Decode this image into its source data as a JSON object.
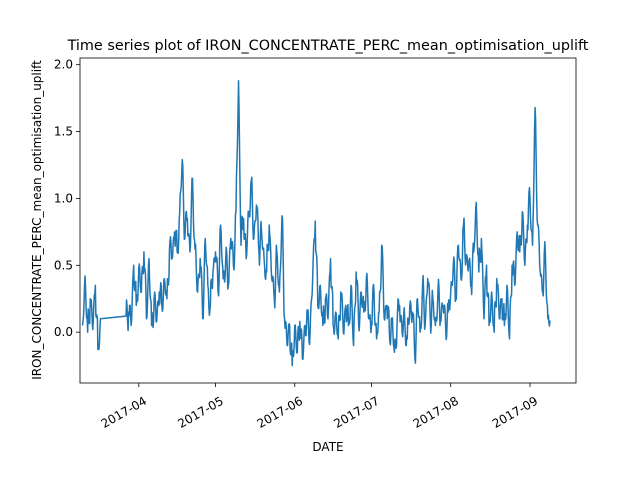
{
  "chart_data": {
    "type": "line",
    "title": "Time series plot of IRON_CONCENTRATE_PERC_mean_optimisation_uplift",
    "xlabel": "DATE",
    "ylabel": "IRON_CONCENTRATE_PERC_mean_optimisation_uplift",
    "xlim": [
      "2017-03-09",
      "2017-09-19"
    ],
    "ylim": [
      -0.38,
      2.05
    ],
    "x_ticks": [
      "2017-04",
      "2017-05",
      "2017-06",
      "2017-07",
      "2017-08",
      "2017-09"
    ],
    "y_ticks": [
      "0.0",
      "0.5",
      "1.0",
      "1.5",
      "2.0"
    ],
    "grid": false,
    "color": "#1f77b4",
    "series": [
      {
        "x": [
          "2017-03-10",
          "2017-03-11",
          "2017-03-12",
          "2017-03-13",
          "2017-03-14",
          "2017-03-15",
          "2017-03-16",
          "2017-03-17",
          "2017-03-27",
          "2017-03-28",
          "2017-03-29",
          "2017-03-30",
          "2017-03-31",
          "2017-04-01",
          "2017-04-02",
          "2017-04-03",
          "2017-04-04",
          "2017-04-05",
          "2017-04-06",
          "2017-04-07",
          "2017-04-08",
          "2017-04-09",
          "2017-04-10",
          "2017-04-11",
          "2017-04-12",
          "2017-04-13",
          "2017-04-14",
          "2017-04-15",
          "2017-04-16",
          "2017-04-17",
          "2017-04-18",
          "2017-04-19",
          "2017-04-20",
          "2017-04-21",
          "2017-04-22",
          "2017-04-23",
          "2017-04-24",
          "2017-04-25",
          "2017-04-26",
          "2017-04-27",
          "2017-04-28",
          "2017-04-29",
          "2017-04-30",
          "2017-05-01",
          "2017-05-02",
          "2017-05-03",
          "2017-05-04",
          "2017-05-05",
          "2017-05-06",
          "2017-05-07",
          "2017-05-08",
          "2017-05-09",
          "2017-05-10",
          "2017-05-11",
          "2017-05-12",
          "2017-05-13",
          "2017-05-14",
          "2017-05-15",
          "2017-05-16",
          "2017-05-17",
          "2017-05-18",
          "2017-05-19",
          "2017-05-20",
          "2017-05-21",
          "2017-05-22",
          "2017-05-23",
          "2017-05-24",
          "2017-05-25",
          "2017-05-26",
          "2017-05-27",
          "2017-05-28",
          "2017-05-29",
          "2017-05-30",
          "2017-05-31",
          "2017-06-01",
          "2017-06-02",
          "2017-06-03",
          "2017-06-04",
          "2017-06-05",
          "2017-06-06",
          "2017-06-07",
          "2017-06-08",
          "2017-06-09",
          "2017-06-10",
          "2017-06-11",
          "2017-06-12",
          "2017-06-13",
          "2017-06-14",
          "2017-06-15",
          "2017-06-16",
          "2017-06-17",
          "2017-06-18",
          "2017-06-19",
          "2017-06-20",
          "2017-06-21",
          "2017-06-22",
          "2017-06-23",
          "2017-06-24",
          "2017-06-25",
          "2017-06-26",
          "2017-06-27",
          "2017-06-28",
          "2017-06-29",
          "2017-06-30",
          "2017-07-01",
          "2017-07-02",
          "2017-07-03",
          "2017-07-04",
          "2017-07-05",
          "2017-07-06",
          "2017-07-07",
          "2017-07-08",
          "2017-07-09",
          "2017-07-10",
          "2017-07-11",
          "2017-07-12",
          "2017-07-13",
          "2017-07-14",
          "2017-07-15",
          "2017-07-16",
          "2017-07-17",
          "2017-07-18",
          "2017-07-19",
          "2017-07-20",
          "2017-07-21",
          "2017-07-22",
          "2017-07-23",
          "2017-07-24",
          "2017-07-25",
          "2017-07-26",
          "2017-07-27",
          "2017-07-28",
          "2017-07-29",
          "2017-07-30",
          "2017-07-31",
          "2017-08-01",
          "2017-08-02",
          "2017-08-03",
          "2017-08-04",
          "2017-08-05",
          "2017-08-06",
          "2017-08-07",
          "2017-08-08",
          "2017-08-09",
          "2017-08-10",
          "2017-08-11",
          "2017-08-12",
          "2017-08-13",
          "2017-08-14",
          "2017-08-15",
          "2017-08-16",
          "2017-08-17",
          "2017-08-18",
          "2017-08-19",
          "2017-08-20",
          "2017-08-21",
          "2017-08-22",
          "2017-08-23",
          "2017-08-24",
          "2017-08-25",
          "2017-08-26",
          "2017-08-27",
          "2017-08-28",
          "2017-08-29",
          "2017-08-30",
          "2017-08-31",
          "2017-09-01",
          "2017-09-02",
          "2017-09-03",
          "2017-09-04",
          "2017-09-05",
          "2017-09-06",
          "2017-09-07",
          "2017-09-08",
          "2017-09-09"
        ],
        "y": [
          0.05,
          0.42,
          0.0,
          0.25,
          0.02,
          0.35,
          -0.13,
          0.1,
          0.12,
          0.15,
          0.05,
          0.5,
          0.2,
          0.48,
          0.3,
          0.6,
          0.1,
          0.55,
          0.05,
          0.25,
          0.08,
          0.3,
          0.2,
          0.4,
          0.25,
          0.62,
          0.55,
          0.75,
          0.6,
          0.9,
          1.29,
          0.7,
          0.85,
          0.6,
          1.15,
          0.62,
          0.3,
          0.55,
          0.1,
          0.7,
          0.35,
          0.2,
          0.45,
          0.6,
          0.3,
          0.8,
          0.4,
          0.55,
          0.35,
          0.7,
          0.5,
          0.9,
          1.88,
          0.65,
          0.85,
          0.55,
          0.9,
          1.13,
          0.7,
          0.95,
          0.6,
          0.75,
          0.55,
          0.45,
          0.8,
          0.4,
          0.25,
          0.6,
          0.3,
          0.87,
          0.1,
          -0.1,
          0.05,
          -0.25,
          0.05,
          -0.15,
          0.08,
          -0.2,
          0.05,
          0.1,
          0.0,
          0.4,
          0.83,
          0.2,
          0.35,
          0.05,
          0.25,
          0.1,
          0.55,
          0.05,
          0.15,
          -0.05,
          0.3,
          0.0,
          0.2,
          0.05,
          0.35,
          -0.1,
          0.45,
          0.05,
          0.3,
          0.15,
          0.4,
          0.1,
          0.05,
          0.3,
          -0.05,
          0.15,
          0.65,
          0.1,
          0.2,
          0.0,
          0.1,
          -0.15,
          0.05,
          0.2,
          0.0,
          0.1,
          -0.05,
          0.2,
          0.15,
          -0.2,
          0.25,
          0.0,
          0.35,
          0.05,
          0.4,
          0.1,
          0.25,
          0.05,
          0.3,
          0.1,
          0.2,
          0.05,
          0.15,
          0.3,
          0.5,
          0.25,
          0.65,
          0.4,
          0.8,
          0.55,
          0.5,
          0.35,
          0.6,
          0.97,
          0.45,
          0.7,
          0.1,
          0.5,
          0.05,
          0.3,
          0.0,
          0.4,
          0.1,
          0.25,
          0.05,
          0.35,
          -0.05,
          0.5,
          0.35,
          0.75,
          0.6,
          0.9,
          0.5,
          0.8,
          1.0,
          0.65,
          1.68,
          0.8,
          0.45,
          0.3,
          0.6,
          0.1,
          0.08
        ]
      }
    ]
  }
}
